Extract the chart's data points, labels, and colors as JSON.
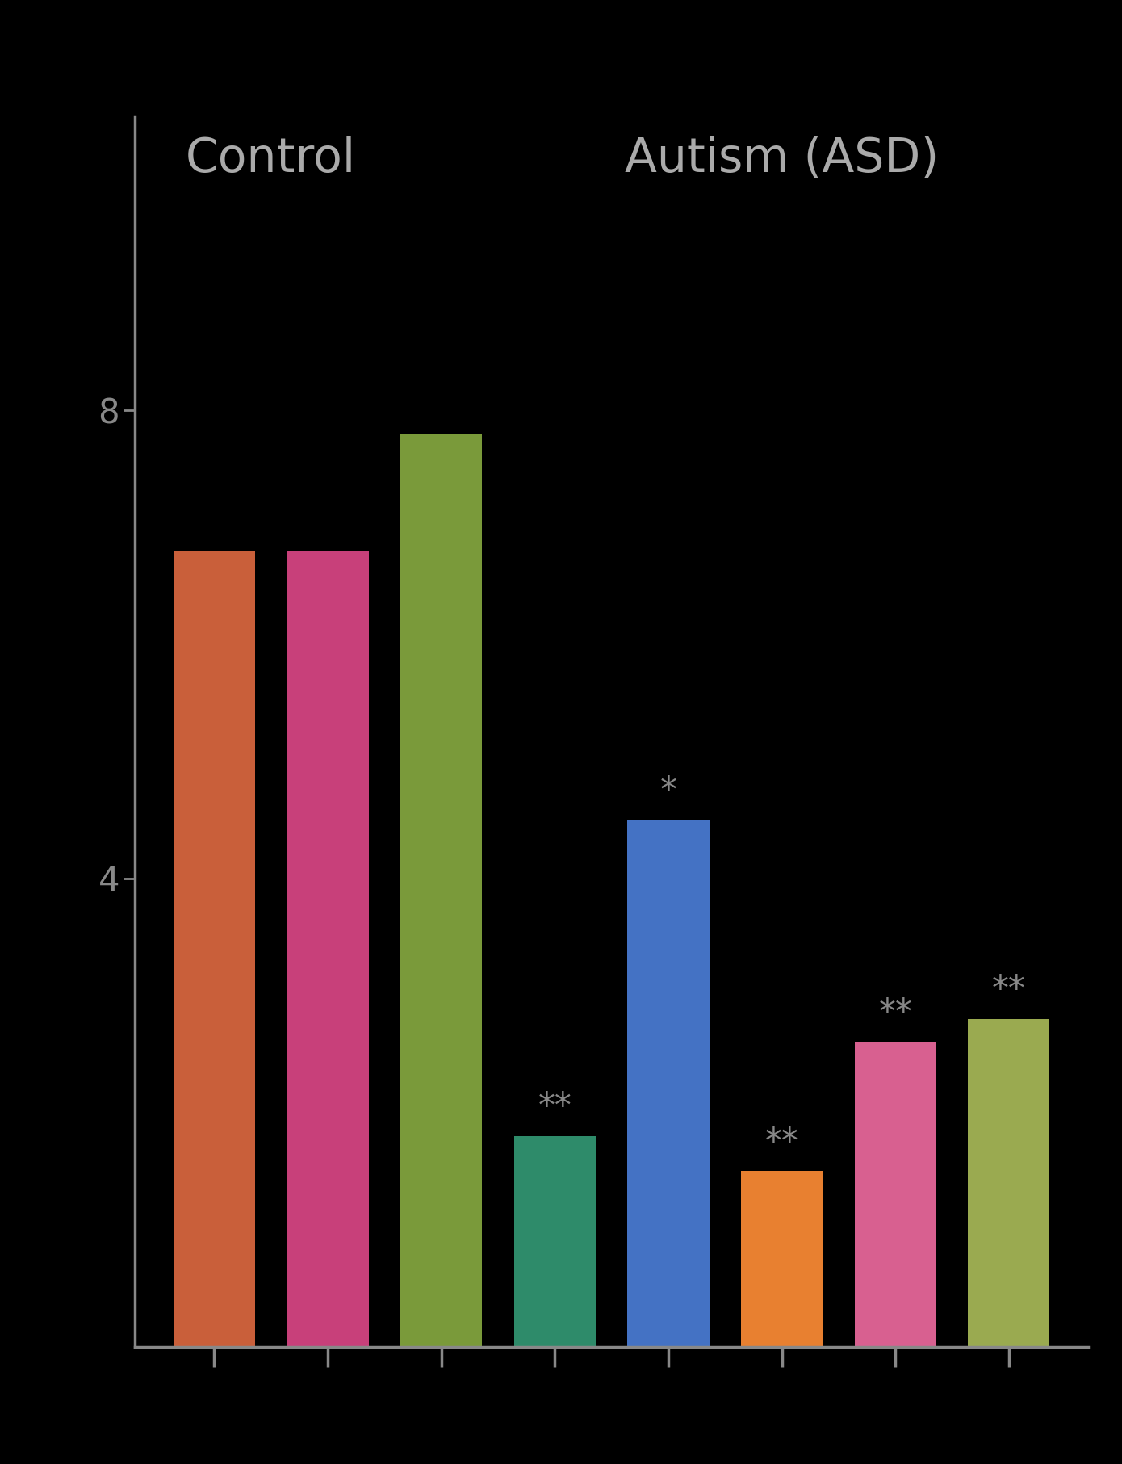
{
  "background_color": "#000000",
  "title_control": "Control",
  "title_asd": "Autism (ASD)",
  "title_fontsize": 42,
  "title_color": "#aaaaaa",
  "bar_colors": [
    "#c95f3a",
    "#c8407a",
    "#7a9a3a",
    "#2e8b6a",
    "#4472c4",
    "#e88030",
    "#d86090",
    "#9aaa50"
  ],
  "bar_values": [
    6.8,
    6.8,
    7.8,
    1.8,
    4.5,
    1.5,
    2.6,
    2.8
  ],
  "significance": [
    "",
    "",
    "",
    "**",
    "*",
    "**",
    "**",
    "**"
  ],
  "significance_fontsize": 30,
  "significance_color": "#888888",
  "ylim": [
    0,
    10.5
  ],
  "yticks": [
    4,
    8
  ],
  "ytick_color": "#888888",
  "ytick_fontsize": 30,
  "spine_color": "#888888",
  "bar_width": 0.72,
  "bar_positions": [
    1,
    2,
    3,
    4,
    5,
    6,
    7,
    8
  ],
  "fig_bg": "#000000"
}
